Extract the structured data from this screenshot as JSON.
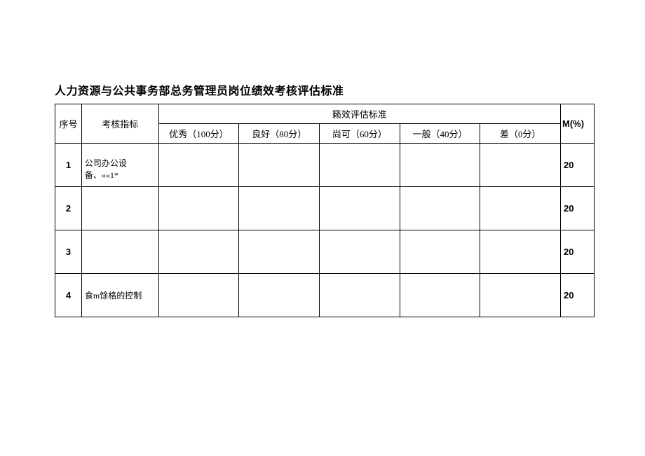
{
  "title": "人力资源与公共事务部总务管理员岗位绩效考核评估标准",
  "headers": {
    "seq": "序号",
    "indicator": "考核指标",
    "standard_group": "籁效评估标准",
    "weight": "M(%)",
    "ratings": {
      "excellent": "优秀（100分）",
      "good": "良好（80分）",
      "acceptable": "尚可（60分）",
      "average": "一般（40分）",
      "poor": "差（0分）"
    }
  },
  "rows": [
    {
      "seq": "1",
      "indicator": "公司办公设备、»«1*",
      "excellent": "",
      "good": "",
      "acceptable": "",
      "average": "",
      "poor": "",
      "weight": "20"
    },
    {
      "seq": "2",
      "indicator": "",
      "excellent": "",
      "good": "",
      "acceptable": "",
      "average": "",
      "poor": "",
      "weight": "20"
    },
    {
      "seq": "3",
      "indicator": "",
      "excellent": "",
      "good": "",
      "acceptable": "",
      "average": "",
      "poor": "",
      "weight": "20"
    },
    {
      "seq": "4",
      "indicator": "食m馀格的控制",
      "excellent": "",
      "good": "",
      "acceptable": "",
      "average": "",
      "poor": "",
      "weight": "20"
    }
  ]
}
